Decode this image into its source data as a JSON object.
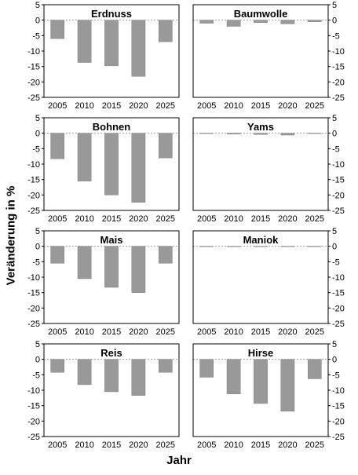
{
  "figure": {
    "ylabel": "Veränderung in %",
    "xlabel": "Jahr"
  },
  "colors": {
    "bar": "#999999",
    "bar_stroke": "#6e6e6e",
    "frame": "#000000",
    "zero_line": "#8a8a8a"
  },
  "chart_data": [
    {
      "type": "bar",
      "title": "Erdnuss",
      "categories": [
        "2005",
        "2010",
        "2015",
        "2020",
        "2025"
      ],
      "values": [
        -6,
        -13.7,
        -14.8,
        -18.2,
        -7
      ],
      "ylim": [
        -25,
        5
      ],
      "yticks": [
        "5",
        "0",
        "-5",
        "-10",
        "-15",
        "-20",
        "-25"
      ],
      "yaxis_side": "left"
    },
    {
      "type": "bar",
      "title": "Baumwolle",
      "categories": [
        "2005",
        "2010",
        "2015",
        "2020",
        "2025"
      ],
      "values": [
        -1,
        -2,
        -0.8,
        -1.2,
        -0.5
      ],
      "ylim": [
        -25,
        5
      ],
      "yticks": [
        "5",
        "0",
        "-5",
        "-10",
        "-15",
        "-20",
        "-25"
      ],
      "yaxis_side": "right"
    },
    {
      "type": "bar",
      "title": "Bohnen",
      "categories": [
        "2005",
        "2010",
        "2015",
        "2020",
        "2025"
      ],
      "values": [
        -8.3,
        -15.5,
        -20,
        -22.4,
        -8
      ],
      "ylim": [
        -25,
        5
      ],
      "yticks": [
        "5",
        "0",
        "-5",
        "-10",
        "-15",
        "-20",
        "-25"
      ],
      "yaxis_side": "left"
    },
    {
      "type": "bar",
      "title": "Yams",
      "categories": [
        "2005",
        "2010",
        "2015",
        "2020",
        "2025"
      ],
      "values": [
        0,
        -0.3,
        -0.4,
        -0.6,
        0
      ],
      "ylim": [
        -25,
        5
      ],
      "yticks": [
        "5",
        "0",
        "-5",
        "-10",
        "-15",
        "-20",
        "-25"
      ],
      "yaxis_side": "right"
    },
    {
      "type": "bar",
      "title": "Mais",
      "categories": [
        "2005",
        "2010",
        "2015",
        "2020",
        "2025"
      ],
      "values": [
        -5.5,
        -10.5,
        -13.3,
        -15,
        -5.5
      ],
      "ylim": [
        -25,
        5
      ],
      "yticks": [
        "5",
        "0",
        "-5",
        "-10",
        "-15",
        "-20",
        "-25"
      ],
      "yaxis_side": "left"
    },
    {
      "type": "bar",
      "title": "Maniok",
      "categories": [
        "2005",
        "2010",
        "2015",
        "2020",
        "2025"
      ],
      "values": [
        -0.1,
        -0.1,
        -0.1,
        -0.1,
        -0.1
      ],
      "ylim": [
        -25,
        5
      ],
      "yticks": [
        "5",
        "0",
        "-5",
        "-10",
        "-15",
        "-20",
        "-25"
      ],
      "yaxis_side": "right"
    },
    {
      "type": "bar",
      "title": "Reis",
      "categories": [
        "2005",
        "2010",
        "2015",
        "2020",
        "2025"
      ],
      "values": [
        -4.2,
        -8.2,
        -10.5,
        -11.7,
        -4.2
      ],
      "ylim": [
        -25,
        5
      ],
      "yticks": [
        "5",
        "0",
        "-5",
        "-10",
        "-15",
        "-20",
        "-25"
      ],
      "yaxis_side": "left"
    },
    {
      "type": "bar",
      "title": "Hirse",
      "categories": [
        "2005",
        "2010",
        "2015",
        "2020",
        "2025"
      ],
      "values": [
        -5.8,
        -11.2,
        -14.3,
        -16.8,
        -6.3
      ],
      "ylim": [
        -25,
        5
      ],
      "yticks": [
        "5",
        "0",
        "-5",
        "-10",
        "-15",
        "-20",
        "-25"
      ],
      "yaxis_side": "right"
    }
  ]
}
